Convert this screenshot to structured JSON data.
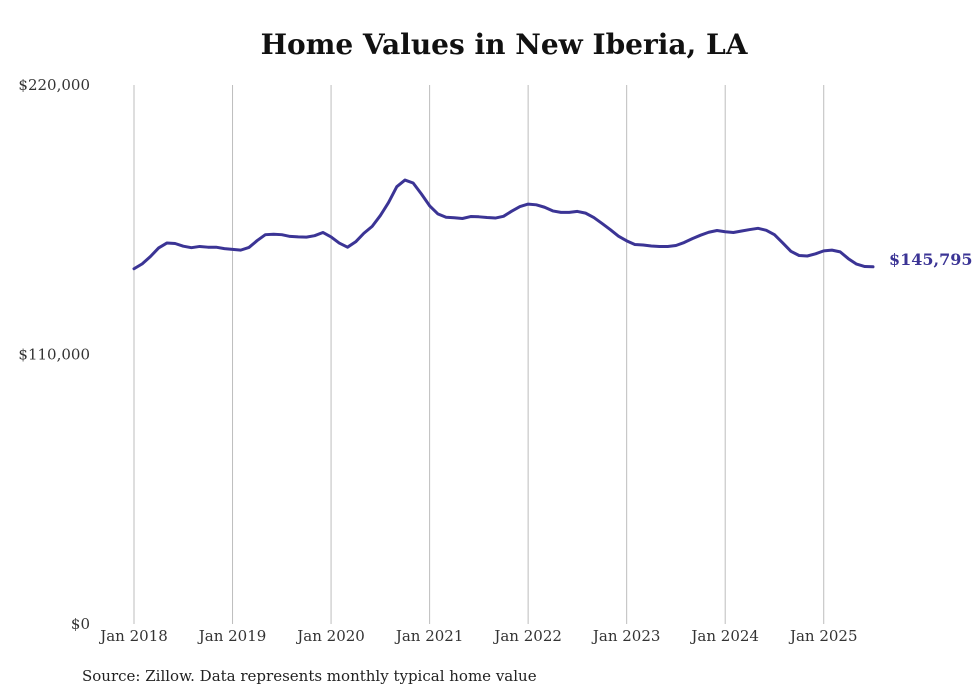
{
  "chart_data": {
    "type": "line",
    "title": "Home Values in New Iberia, LA",
    "xlabel": "",
    "ylabel": "",
    "ylim": [
      0,
      220000
    ],
    "y_ticks": [
      {
        "value": 0,
        "label": "$0"
      },
      {
        "value": 110000,
        "label": "$110,000"
      },
      {
        "value": 220000,
        "label": "$220,000"
      }
    ],
    "x_ticks": [
      {
        "value": 2018,
        "label": "Jan 2018"
      },
      {
        "value": 2019,
        "label": "Jan 2019"
      },
      {
        "value": 2020,
        "label": "Jan 2020"
      },
      {
        "value": 2021,
        "label": "Jan 2021"
      },
      {
        "value": 2022,
        "label": "Jan 2022"
      },
      {
        "value": 2023,
        "label": "Jan 2023"
      },
      {
        "value": 2024,
        "label": "Jan 2024"
      },
      {
        "value": 2025,
        "label": "Jan 2025"
      }
    ],
    "xlim": [
      2018,
      2025.5
    ],
    "grid": "vertical",
    "line_color": "#3b3495",
    "end_label": "$145,795",
    "series": [
      {
        "x": [
          2018.0,
          2018.083,
          2018.167,
          2018.25,
          2018.333,
          2018.417,
          2018.5,
          2018.583,
          2018.667,
          2018.75,
          2018.833,
          2018.917,
          2019.0,
          2019.083,
          2019.167,
          2019.25,
          2019.333,
          2019.417,
          2019.5,
          2019.583,
          2019.667,
          2019.75,
          2019.833,
          2019.917,
          2020.0,
          2020.083,
          2020.167,
          2020.25,
          2020.333,
          2020.417,
          2020.5,
          2020.583,
          2020.667,
          2020.75,
          2020.833,
          2020.917,
          2021.0,
          2021.083,
          2021.167,
          2021.25,
          2021.333,
          2021.417,
          2021.5,
          2021.583,
          2021.667,
          2021.75,
          2021.833,
          2021.917,
          2022.0,
          2022.083,
          2022.167,
          2022.25,
          2022.333,
          2022.417,
          2022.5,
          2022.583,
          2022.667,
          2022.75,
          2022.833,
          2022.917,
          2023.0,
          2023.083,
          2023.167,
          2023.25,
          2023.333,
          2023.417,
          2023.5,
          2023.583,
          2023.667,
          2023.75,
          2023.833,
          2023.917,
          2024.0,
          2024.083,
          2024.167,
          2024.25,
          2024.333,
          2024.417,
          2024.5,
          2024.583,
          2024.667,
          2024.75,
          2024.833,
          2024.917,
          2025.0,
          2025.083,
          2025.167,
          2025.25,
          2025.333,
          2025.417,
          2025.5
        ],
        "values": [
          145000,
          147000,
          150000,
          153500,
          155500,
          155300,
          154200,
          153600,
          154100,
          153800,
          153800,
          153200,
          152900,
          152600,
          153700,
          156500,
          158900,
          159100,
          158900,
          158200,
          158000,
          157900,
          158500,
          159800,
          158000,
          155500,
          153800,
          156000,
          159500,
          162300,
          166700,
          172000,
          178500,
          181200,
          180000,
          175500,
          170700,
          167400,
          166000,
          165800,
          165500,
          166300,
          166200,
          165900,
          165700,
          166400,
          168500,
          170400,
          171400,
          171100,
          170100,
          168600,
          168000,
          168000,
          168400,
          167700,
          165900,
          163500,
          161000,
          158300,
          156400,
          154900,
          154700,
          154300,
          154100,
          154100,
          154500,
          155700,
          157300,
          158700,
          159900,
          160600,
          160100,
          159800,
          160400,
          161000,
          161500,
          160700,
          158900,
          155600,
          152100,
          150400,
          150200,
          151100,
          152300,
          152600,
          151900,
          149100,
          146900,
          145900,
          145795
        ]
      }
    ]
  },
  "source_note": "Source: Zillow. Data represents monthly typical home value"
}
